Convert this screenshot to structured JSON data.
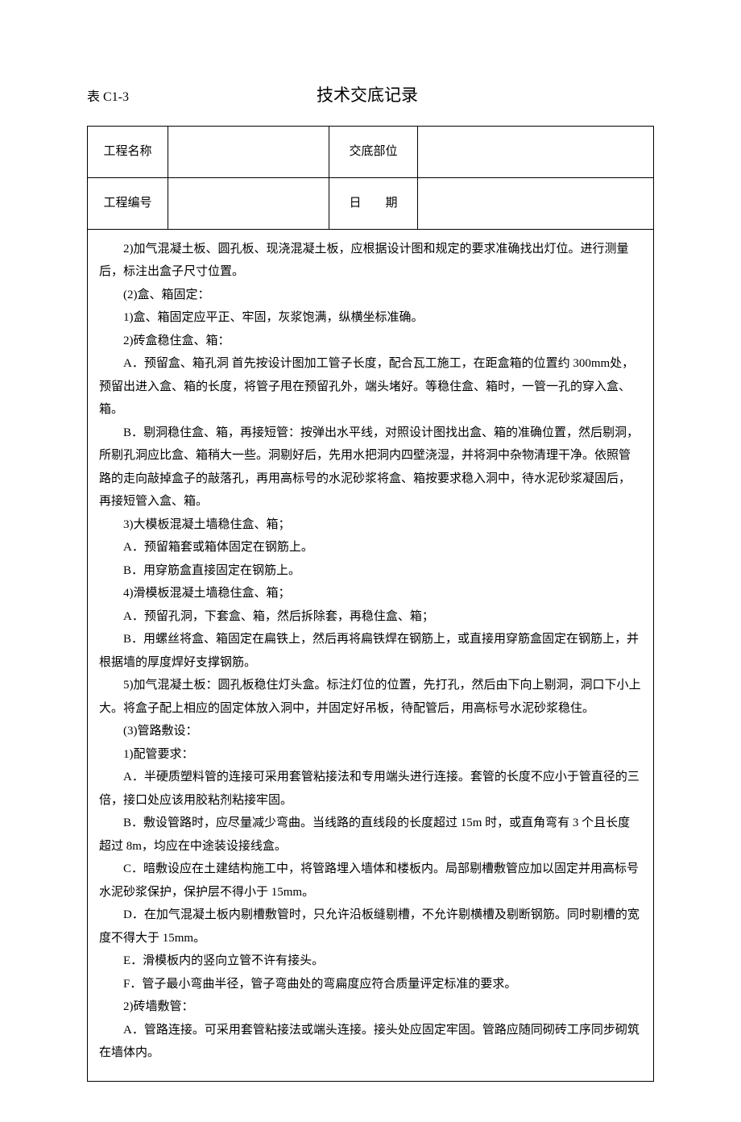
{
  "header": {
    "table_label": "表 C1-3",
    "main_title": "技术交底记录"
  },
  "info_table": {
    "row1": {
      "label1": "工程名称",
      "value1": "",
      "label2": "交底部位",
      "value2": ""
    },
    "row2": {
      "label1": "工程编号",
      "value1": "",
      "label2": "日　　期",
      "value2": ""
    }
  },
  "content": {
    "p1": "2)加气混凝土板、圆孔板、现浇混凝土板，应根据设计图和规定的要求准确找出灯位。进行测量后，标注出盒子尺寸位置。",
    "p2": "(2)盒、箱固定：",
    "p3": "1)盒、箱固定应平正、牢固，灰浆饱满，纵横坐标准确。",
    "p4": "2)砖盒稳住盒、箱：",
    "p5": "A．预留盒、箱孔洞 首先按设计图加工管子长度，配合瓦工施工，在距盒箱的位置约 300mm处，预留出进入盒、箱的长度，将管子甩在预留孔外，端头堵好。等稳住盒、箱时，一管一孔的穿入盒、箱。",
    "p6": "B．剔洞稳住盒、箱，再接短管：按弹出水平线，对照设计图找出盒、箱的准确位置，然后剔洞，所剔孔洞应比盒、箱稍大一些。洞剔好后，先用水把洞内四壁浇湿，并将洞中杂物清理干净。依照管路的走向敲掉盒子的敲落孔，再用高标号的水泥砂浆将盒、箱按要求稳入洞中，待水泥砂浆凝固后，再接短管入盒、箱。",
    "p7": "3)大模板混凝土墙稳住盒、箱；",
    "p8": "A．预留箱套或箱体固定在钢筋上。",
    "p9": "B．用穿筋盒直接固定在钢筋上。",
    "p10": "4)滑模板混凝土墙稳住盒、箱；",
    "p11": "A．预留孔洞，下套盒、箱，然后拆除套，再稳住盒、箱；",
    "p12": "B．用螺丝将盒、箱固定在扁铁上，然后再将扁铁焊在钢筋上，或直接用穿筋盒固定在钢筋上，并根据墙的厚度焊好支撑钢筋。",
    "p13": "5)加气混凝土板：圆孔板稳住灯头盒。标注灯位的位置，先打孔，然后由下向上剔洞，洞口下小上大。将盒子配上相应的固定体放入洞中，并固定好吊板，待配管后，用高标号水泥砂浆稳住。",
    "p14": "(3)管路敷设：",
    "p15": "1)配管要求：",
    "p16": "A．半硬质塑料管的连接可采用套管粘接法和专用端头进行连接。套管的长度不应小于管直径的三倍，接口处应该用胶粘剂粘接牢固。",
    "p17": "B．敷设管路时，应尽量减少弯曲。当线路的直线段的长度超过 15m 时，或直角弯有 3 个且长度超过 8m，均应在中途装设接线盒。",
    "p18": "C．暗敷设应在土建结构施工中，将管路埋入墙体和楼板内。局部剔槽敷管应加以固定并用高标号水泥砂浆保护，保护层不得小于 15mm。",
    "p19": "D．在加气混凝土板内剔槽敷管时，只允许沿板缝剔槽，不允许剔横槽及剔断钢筋。同时剔槽的宽度不得大于 15mm。",
    "p20": "E．滑模板内的竖向立管不许有接头。",
    "p21": "F．管子最小弯曲半径，管子弯曲处的弯扁度应符合质量评定标准的要求。",
    "p22": "2)砖墙敷管：",
    "p23": "A．管路连接。可采用套管粘接法或端头连接。接头处应固定牢固。管路应随同砌砖工序同步砌筑在墙体内。"
  }
}
